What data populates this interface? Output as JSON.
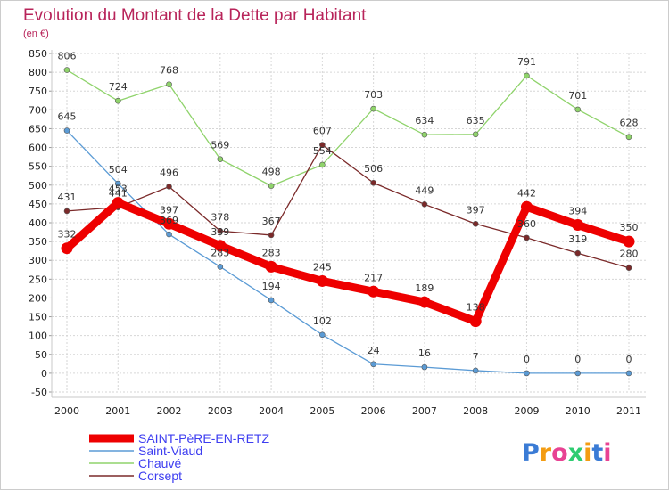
{
  "chart_data": {
    "type": "line",
    "title": "Evolution du Montant de la Dette par Habitant",
    "subtitle": "(en €)",
    "categories": [
      "2000",
      "2001",
      "2002",
      "2003",
      "2004",
      "2005",
      "2006",
      "2007",
      "2008",
      "2009",
      "2010",
      "2011"
    ],
    "ylim": [
      -50,
      850
    ],
    "yticks": [
      -50,
      0,
      50,
      100,
      150,
      200,
      250,
      300,
      350,
      400,
      450,
      500,
      550,
      600,
      650,
      700,
      750,
      800,
      850
    ],
    "grid": true,
    "legend_position": "bottom-left",
    "series": [
      {
        "name": "SAINT-PèRE-EN-RETZ",
        "color": "#ee0000",
        "values": [
          332,
          453,
          397,
          339,
          283,
          245,
          217,
          189,
          138,
          442,
          394,
          350
        ]
      },
      {
        "name": "Saint-Viaud",
        "color": "#5b9bd5",
        "values": [
          645,
          504,
          369,
          283,
          194,
          102,
          24,
          16,
          7,
          0,
          0,
          0
        ]
      },
      {
        "name": "Chauvé",
        "color": "#8fd36b",
        "values": [
          806,
          724,
          768,
          569,
          498,
          554,
          703,
          634,
          635,
          791,
          701,
          628
        ]
      },
      {
        "name": "Corsept",
        "color": "#7b2a2a",
        "values": [
          431,
          441,
          496,
          378,
          367,
          607,
          506,
          449,
          397,
          360,
          319,
          280
        ]
      }
    ]
  },
  "branding": {
    "logo_text": "Proxiti"
  }
}
